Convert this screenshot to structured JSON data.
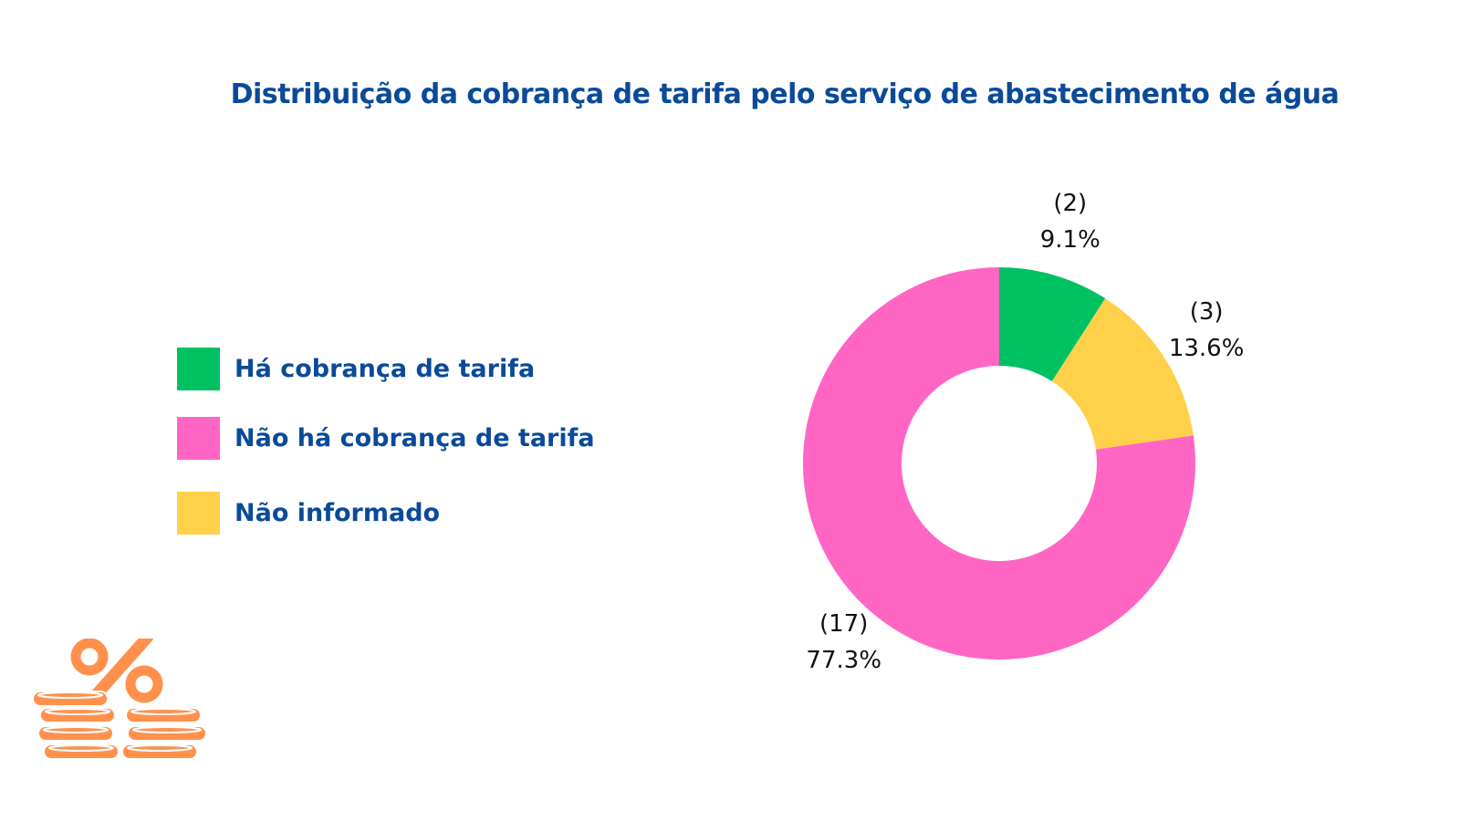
{
  "title": "Distribuição da cobrança de tarifa pelo serviço de abastecimento de água",
  "chart_data": {
    "type": "pie",
    "donut": true,
    "title": "Distribuição da cobrança de tarifa pelo serviço de abastecimento de água",
    "legend_position": "left",
    "categories": [
      "Há cobrança de tarifa",
      "Não há cobrança de tarifa",
      "Não informado"
    ],
    "counts": [
      2,
      17,
      3
    ],
    "percents": [
      9.1,
      77.3,
      13.6
    ],
    "count_labels": [
      "(2)",
      "(17)",
      "(3)"
    ],
    "percent_labels": [
      "9.1%",
      "77.3%",
      "13.6%"
    ],
    "colors": [
      "#00c162",
      "#ff66c4",
      "#ffd04a"
    ],
    "slice_order": [
      0,
      2,
      1
    ]
  },
  "legend": {
    "items": [
      {
        "label": "Há cobrança de tarifa",
        "color": "#00c162"
      },
      {
        "label": "Não há cobrança de tarifa",
        "color": "#ff66c4"
      },
      {
        "label": "Não informado",
        "color": "#ffd04a"
      }
    ]
  },
  "decoration": {
    "icon": "percent-coins-icon",
    "color": "#ff914d"
  }
}
